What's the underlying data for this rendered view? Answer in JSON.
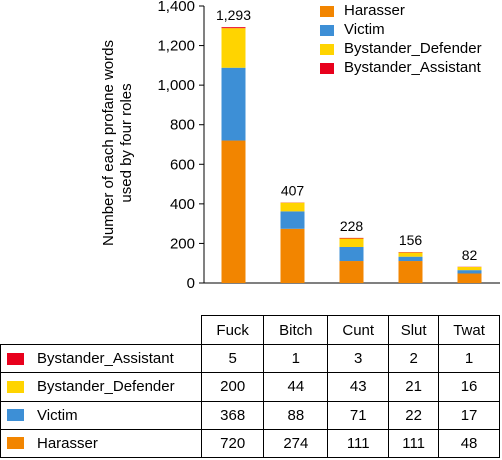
{
  "chart_data": {
    "type": "bar",
    "stacked": true,
    "categories": [
      "Fuck",
      "Bitch",
      "Cunt",
      "Slut",
      "Twat"
    ],
    "series": [
      {
        "name": "Harasser",
        "color": "#f28500",
        "values": [
          720,
          274,
          111,
          111,
          48
        ]
      },
      {
        "name": "Victim",
        "color": "#3d8fd6",
        "values": [
          368,
          88,
          71,
          22,
          17
        ]
      },
      {
        "name": "Bystander_Defender",
        "color": "#ffd400",
        "values": [
          200,
          44,
          43,
          21,
          16
        ]
      },
      {
        "name": "Bystander_Assistant",
        "color": "#e8001c",
        "values": [
          5,
          1,
          3,
          2,
          1
        ]
      }
    ],
    "totals": [
      1293,
      407,
      228,
      156,
      82
    ],
    "total_labels": [
      "1,293",
      "407",
      "228",
      "156",
      "82"
    ],
    "ylabel": "Number of each profane words used by four roles",
    "ylabel_lines": [
      "Number of each profane words",
      "used by four roles"
    ],
    "ylim": [
      0,
      1400
    ],
    "yticks": [
      0,
      200,
      400,
      600,
      800,
      1000,
      1200,
      1400
    ],
    "ytick_labels": [
      "0",
      "200",
      "400",
      "600",
      "800",
      "1,000",
      "1,200",
      "1,400"
    ],
    "grid": false,
    "legend_position": "top-right"
  },
  "table": {
    "row_order": [
      "Bystander_Assistant",
      "Bystander_Defender",
      "Victim",
      "Harasser"
    ]
  }
}
